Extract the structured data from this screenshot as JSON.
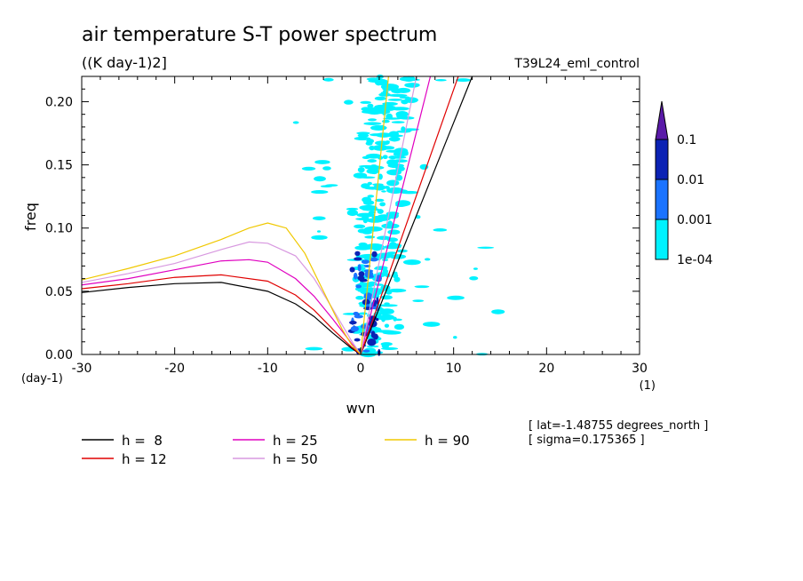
{
  "header": {
    "title": "air temperature S-T power spectrum",
    "units": "((K day-1)2]",
    "run_name": "T39L24_eml_control"
  },
  "axes": {
    "xlabel": "wvn",
    "ylabel": "freq",
    "x_unit": "(1)",
    "y_unit": "(day-1)",
    "x_ticks": [
      "-30",
      "-20",
      "-10",
      "0",
      "10",
      "20",
      "30"
    ],
    "y_ticks": [
      "0.00",
      "0.05",
      "0.10",
      "0.15",
      "0.20"
    ]
  },
  "colorbar": {
    "labels": [
      "0.1",
      "0.01",
      "0.001",
      "1e-04"
    ],
    "colors": [
      "#5a1aa8",
      "#0b22b4",
      "#1a73ff",
      "#00f2ff"
    ]
  },
  "legend": [
    {
      "label": "h =  8",
      "color": "#000000"
    },
    {
      "label": "h = 12",
      "color": "#e00000"
    },
    {
      "label": "h = 25",
      "color": "#e000c0"
    },
    {
      "label": "h = 50",
      "color": "#d899e0"
    },
    {
      "label": "h = 90",
      "color": "#f0c800"
    }
  ],
  "info": {
    "lat": "[ lat=-1.48755 degrees_north ]",
    "sigma": "[ sigma=0.175365 ]"
  },
  "chart_data": {
    "type": "heatmap",
    "title": "air temperature S-T power spectrum",
    "xlabel": "wvn",
    "ylabel": "freq",
    "xlim": [
      -30,
      30
    ],
    "ylim": [
      0,
      0.22
    ],
    "contour_levels": [
      0.0001,
      0.001,
      0.01,
      0.1
    ],
    "series": [
      {
        "name": "h =  8",
        "kelvin_x": [
          0,
          12
        ],
        "kelvin_y": [
          0,
          0.22
        ],
        "rossby_x": [
          -30,
          -25,
          -20,
          -15,
          -10,
          -7,
          -5,
          -3,
          -1,
          0
        ],
        "rossby_y": [
          0.049,
          0.053,
          0.056,
          0.057,
          0.05,
          0.04,
          0.03,
          0.017,
          0.005,
          0
        ]
      },
      {
        "name": "h = 12",
        "kelvin_x": [
          0,
          10.5
        ],
        "kelvin_y": [
          0,
          0.22
        ],
        "rossby_x": [
          -30,
          -25,
          -20,
          -15,
          -10,
          -7,
          -5,
          -3,
          -1,
          0
        ],
        "rossby_y": [
          0.052,
          0.056,
          0.061,
          0.063,
          0.058,
          0.047,
          0.035,
          0.02,
          0.006,
          0
        ]
      },
      {
        "name": "h = 25",
        "kelvin_x": [
          0,
          7.5
        ],
        "kelvin_y": [
          0,
          0.22
        ],
        "rossby_x": [
          -30,
          -25,
          -20,
          -15,
          -12,
          -10,
          -7,
          -5,
          -3,
          -1,
          0
        ],
        "rossby_y": [
          0.055,
          0.06,
          0.067,
          0.074,
          0.075,
          0.073,
          0.06,
          0.046,
          0.028,
          0.009,
          0
        ]
      },
      {
        "name": "h = 50",
        "kelvin_x": [
          0,
          6
        ],
        "kelvin_y": [
          0,
          0.22
        ],
        "rossby_x": [
          -30,
          -25,
          -20,
          -15,
          -12,
          -10,
          -7,
          -5,
          -3,
          -1,
          0
        ],
        "rossby_y": [
          0.057,
          0.064,
          0.072,
          0.083,
          0.089,
          0.088,
          0.078,
          0.06,
          0.036,
          0.011,
          0
        ]
      },
      {
        "name": "h = 90",
        "kelvin_x": [
          0,
          3
        ],
        "kelvin_y": [
          0,
          0.22
        ],
        "rossby_x": [
          -30,
          -25,
          -20,
          -15,
          -12,
          -10,
          -8,
          -6,
          -4,
          -2,
          -1,
          0
        ],
        "rossby_y": [
          0.059,
          0.068,
          0.078,
          0.091,
          0.1,
          0.104,
          0.1,
          0.08,
          0.05,
          0.02,
          0.008,
          0
        ]
      }
    ]
  }
}
